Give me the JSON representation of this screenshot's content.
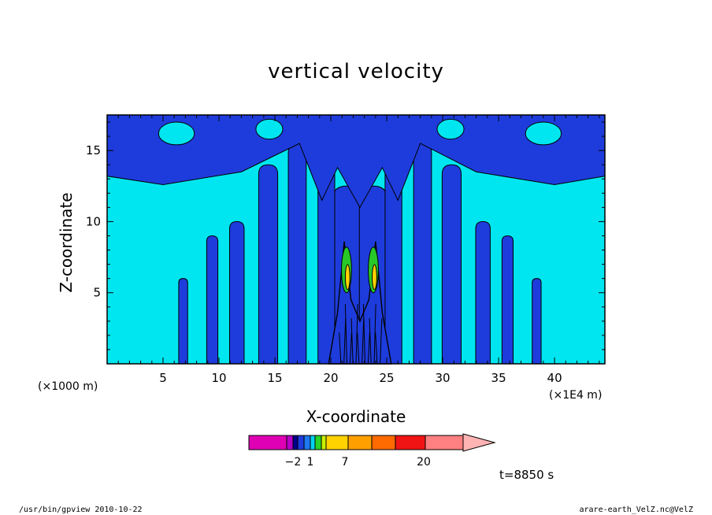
{
  "chart_data": {
    "type": "contour",
    "title": "vertical velocity",
    "xlabel": "X-coordinate",
    "ylabel": "Z-coordinate",
    "x_unit_left": "(×1000 m)",
    "x_unit_right": "(×1E4 m)",
    "xlim": [
      0,
      44.5
    ],
    "ylim": [
      0,
      17.5
    ],
    "xticks": [
      5,
      10,
      15,
      20,
      25,
      30,
      35,
      40
    ],
    "yticks": [
      5,
      10,
      15
    ],
    "colorbar": {
      "levels": [
        -2,
        1,
        7,
        20
      ],
      "tick_labels": [
        "−2",
        "1",
        "7",
        "20"
      ],
      "colors": [
        "#e000b4",
        "#b400c8",
        "#00008c",
        "#1e3cdc",
        "#1e78f0",
        "#00d2f0",
        "#28d228",
        "#c8f000",
        "#ffd200",
        "#ffa000",
        "#ff6a00",
        "#f01414",
        "#ff8080",
        "#ffb4b4"
      ]
    },
    "time_label": "t=8850 s",
    "colors": {
      "dark_blue": "#1e3cdc",
      "light_cyan": "#00e6f0",
      "green": "#28c828",
      "yellow": "#ffd200"
    }
  },
  "footer": {
    "left": "/usr/bin/gpview   2010-10-22",
    "right": "arare-earth_VelZ.nc@VelZ"
  }
}
